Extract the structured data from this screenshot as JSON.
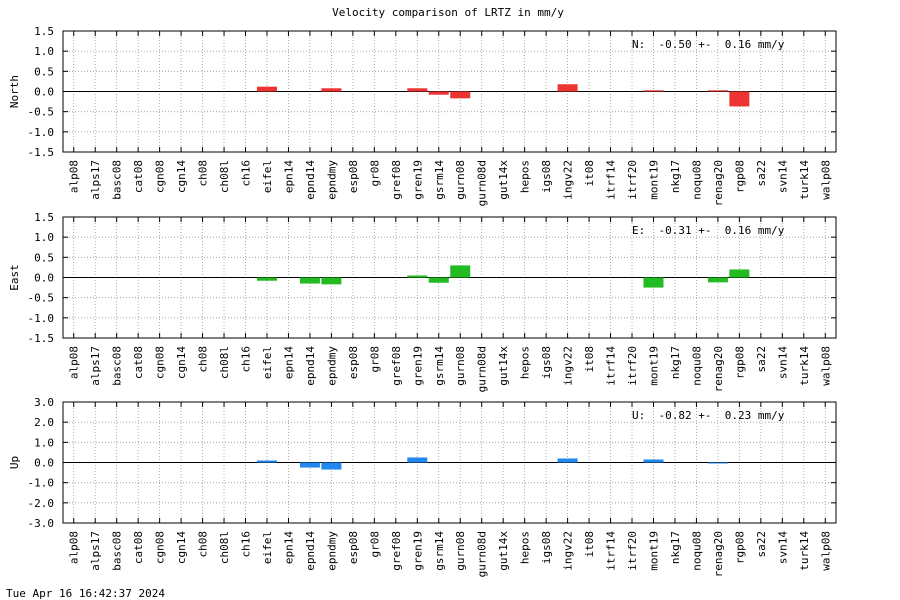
{
  "chart_data": {
    "type": "bar",
    "title": "Velocity comparison of LRTZ in mm/y",
    "timestamp": "Tue Apr 16 16:42:37 2024",
    "categories": [
      "alp08",
      "alps17",
      "basc08",
      "cat08",
      "cgn08",
      "cgn14",
      "ch08",
      "ch08l",
      "ch16",
      "eifel",
      "epn14",
      "epnd14",
      "epndmy",
      "esp08",
      "gr08",
      "gref08",
      "gren19",
      "gsrm14",
      "gurn08",
      "gurn08d",
      "gut14x",
      "hepos",
      "igs08",
      "ingv22",
      "it08",
      "itrf14",
      "itrf20",
      "mont19",
      "nkg17",
      "noqu08",
      "renag20",
      "rgp08",
      "sa22",
      "svn14",
      "turk14",
      "walp08"
    ],
    "grid": true,
    "panels": [
      {
        "name": "north",
        "ylabel": "North",
        "ylim": [
          -1.5,
          1.5
        ],
        "yticks": [
          "1.5",
          "1.0",
          "0.5",
          "0.0",
          "-0.5",
          "-1.0",
          "-1.5"
        ],
        "ytick_values": [
          1.5,
          1.0,
          0.5,
          0.0,
          -0.5,
          -1.0,
          -1.5
        ],
        "color": "#ee3333",
        "annotation": "N:  -0.50 +-  0.16 mm/y",
        "values": [
          0,
          0,
          0,
          0,
          0,
          0,
          0,
          0,
          0,
          0.12,
          0,
          0,
          0.08,
          0,
          0,
          0,
          0.08,
          -0.08,
          -0.17,
          0,
          0,
          0,
          0,
          0.18,
          0,
          0,
          0,
          0.03,
          0,
          0,
          0.03,
          -0.37,
          0,
          0,
          0,
          0
        ]
      },
      {
        "name": "east",
        "ylabel": "East",
        "ylim": [
          -1.5,
          1.5
        ],
        "yticks": [
          "1.5",
          "1.0",
          "0.5",
          "0.0",
          "-0.5",
          "-1.0",
          "-1.5"
        ],
        "ytick_values": [
          1.5,
          1.0,
          0.5,
          0.0,
          -0.5,
          -1.0,
          -1.5
        ],
        "color": "#22bb22",
        "annotation": "E:  -0.31 +-  0.16 mm/y",
        "values": [
          0,
          0,
          0,
          0,
          0,
          0,
          0,
          0,
          0,
          -0.08,
          0,
          -0.15,
          -0.17,
          0,
          0,
          0,
          0.05,
          -0.13,
          0.3,
          0,
          0,
          0,
          0,
          0,
          0,
          0,
          0,
          -0.25,
          0,
          0,
          -0.12,
          0.2,
          0,
          0,
          0,
          0
        ]
      },
      {
        "name": "up",
        "ylabel": "Up",
        "ylim": [
          -3.0,
          3.0
        ],
        "yticks": [
          "3.0",
          "2.0",
          "1.0",
          "0.0",
          "-1.0",
          "-2.0",
          "-3.0"
        ],
        "ytick_values": [
          3.0,
          2.0,
          1.0,
          0.0,
          -1.0,
          -2.0,
          -3.0
        ],
        "color": "#2288ee",
        "annotation": "U:  -0.82 +-  0.23 mm/y",
        "values": [
          0,
          0,
          0,
          0,
          0,
          0,
          0,
          0,
          0,
          0.1,
          0,
          -0.25,
          -0.35,
          0,
          0,
          0,
          0.25,
          0,
          0,
          0,
          0,
          0,
          0,
          0.2,
          0,
          0,
          0,
          0.15,
          0,
          0,
          -0.05,
          0,
          0,
          0,
          0,
          0
        ]
      }
    ]
  }
}
